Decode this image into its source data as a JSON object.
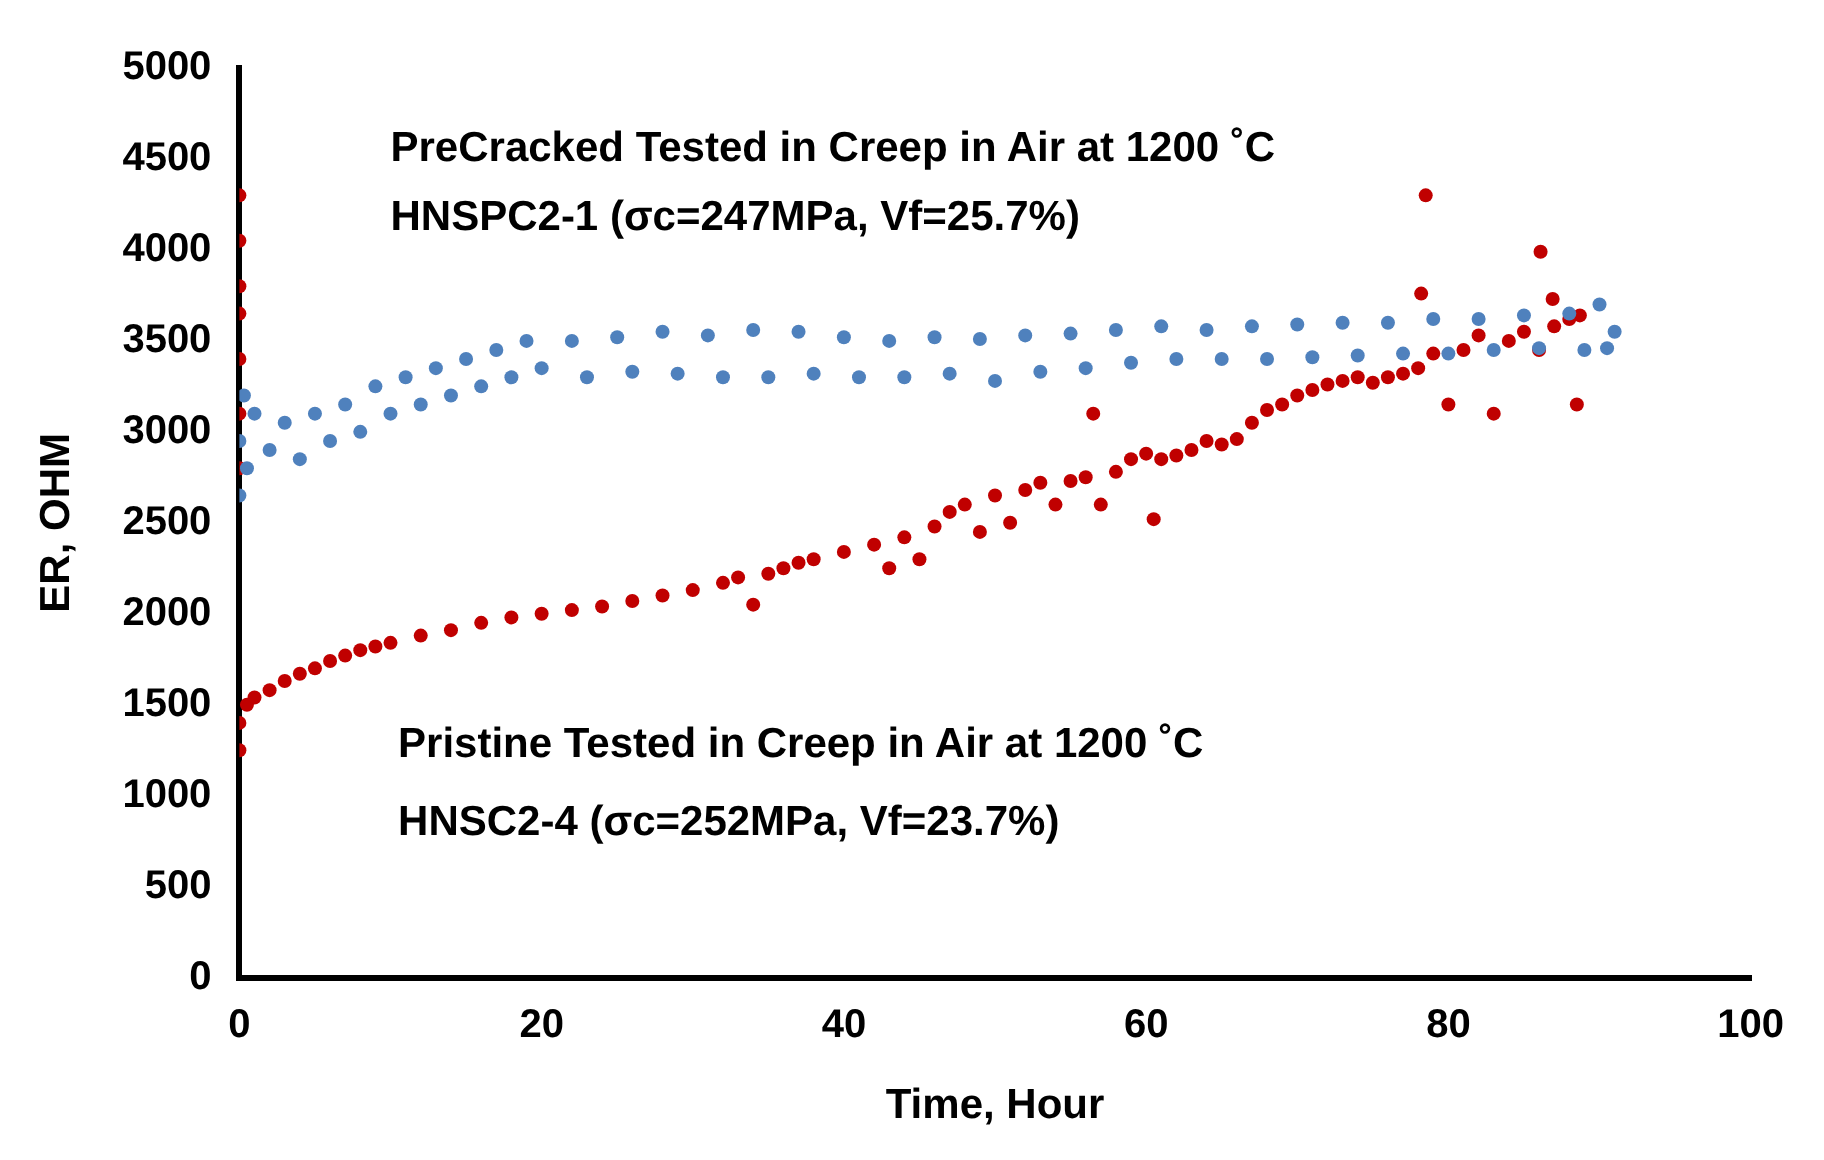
{
  "chart_data": {
    "type": "scatter",
    "xlabel": "Time, Hour",
    "ylabel": "ER, OHM",
    "xlim": [
      0,
      100
    ],
    "xticks": [
      0,
      20,
      40,
      60,
      80,
      100
    ],
    "ylim": [
      0,
      5000
    ],
    "yticks": [
      0,
      500,
      1000,
      1500,
      2000,
      2500,
      3000,
      3500,
      4000,
      4500,
      5000
    ],
    "grid": false,
    "legend": false,
    "marker": "circle",
    "annotations": [
      "PreCracked Tested in Creep in Air at 1200 ˚C",
      "HNSPC2-1 (σc=247MPa, Vf=25.7%)",
      "Pristine Tested in Creep in Air at 1200 ˚C",
      "HNSC2-4 (σc=252MPa, Vf=23.7%)"
    ],
    "series": [
      {
        "color": "#4f81bd",
        "x": [
          0,
          0,
          0.3,
          0.5,
          1,
          2,
          3,
          4,
          5,
          6,
          7,
          8,
          9,
          10,
          11,
          12,
          13,
          14,
          15,
          16,
          17,
          18,
          19,
          20,
          22,
          23,
          25,
          26,
          28,
          29,
          31,
          32,
          34,
          35,
          37,
          38,
          40,
          41,
          43,
          44,
          46,
          47,
          49,
          50,
          52,
          53,
          55,
          56,
          58,
          59,
          61,
          62,
          64,
          65,
          67,
          68,
          70,
          71,
          73,
          74,
          76,
          77,
          79,
          80,
          82,
          83,
          85,
          86,
          88,
          89,
          90,
          90.5,
          91
        ],
        "values": [
          2950,
          2650,
          3200,
          2800,
          3100,
          2900,
          3050,
          2850,
          3100,
          2950,
          3150,
          3000,
          3250,
          3100,
          3300,
          3150,
          3350,
          3200,
          3400,
          3250,
          3450,
          3300,
          3500,
          3350,
          3500,
          3300,
          3520,
          3330,
          3550,
          3320,
          3530,
          3300,
          3560,
          3300,
          3550,
          3320,
          3520,
          3300,
          3500,
          3300,
          3520,
          3320,
          3510,
          3280,
          3530,
          3330,
          3540,
          3350,
          3560,
          3380,
          3580,
          3400,
          3560,
          3400,
          3580,
          3400,
          3590,
          3410,
          3600,
          3420,
          3600,
          3430,
          3620,
          3430,
          3620,
          3450,
          3640,
          3460,
          3650,
          3450,
          3700,
          3460,
          3550
        ]
      },
      {
        "color": "#c00000",
        "x": [
          0,
          0,
          0,
          0,
          0,
          0,
          0,
          0,
          0,
          0.5,
          1,
          2,
          3,
          4,
          5,
          6,
          7,
          8,
          9,
          10,
          12,
          14,
          16,
          18,
          20,
          22,
          24,
          26,
          28,
          30,
          32,
          33,
          34,
          35,
          36,
          37,
          38,
          40,
          42,
          43,
          44,
          45,
          46,
          47,
          48,
          49,
          50,
          51,
          52,
          53,
          54,
          55,
          56,
          56.5,
          57,
          58,
          59,
          60,
          60.5,
          61,
          62,
          63,
          64,
          65,
          66,
          67,
          68,
          69,
          70,
          71,
          72,
          73,
          74,
          75,
          76,
          77,
          78,
          78.2,
          78.5,
          79,
          80,
          81,
          82,
          83,
          84,
          85,
          86,
          86.1,
          86.9,
          87,
          88,
          88.5,
          88.7
        ],
        "values": [
          1250,
          1400,
          2800,
          3100,
          3400,
          3650,
          3800,
          4050,
          4300,
          1500,
          1540,
          1580,
          1630,
          1670,
          1700,
          1740,
          1770,
          1800,
          1820,
          1840,
          1880,
          1910,
          1950,
          1980,
          2000,
          2020,
          2040,
          2070,
          2100,
          2130,
          2170,
          2200,
          2050,
          2220,
          2250,
          2280,
          2300,
          2340,
          2380,
          2250,
          2420,
          2300,
          2480,
          2560,
          2600,
          2450,
          2650,
          2500,
          2680,
          2720,
          2600,
          2730,
          2750,
          3100,
          2600,
          2780,
          2850,
          2880,
          2520,
          2850,
          2870,
          2900,
          2950,
          2930,
          2960,
          3050,
          3120,
          3150,
          3200,
          3230,
          3260,
          3280,
          3300,
          3270,
          3300,
          3320,
          3350,
          3760,
          4300,
          3430,
          3150,
          3450,
          3530,
          3100,
          3500,
          3550,
          3450,
          3990,
          3730,
          3580,
          3620,
          3150,
          3640
        ]
      }
    ]
  }
}
